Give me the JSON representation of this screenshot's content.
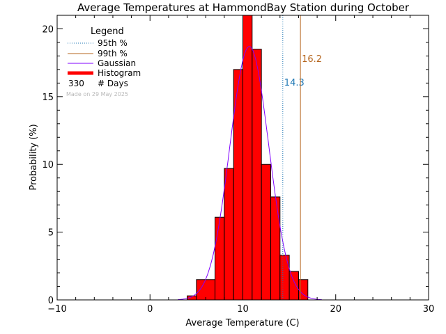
{
  "chart_data": {
    "type": "bar",
    "title": "Average Temperatures at HammondBay Station during October",
    "xlabel": "Average Temperature (C)",
    "ylabel": "Probability  (%)",
    "xlim": [
      -10,
      30
    ],
    "ylim": [
      0,
      21
    ],
    "xticks": [
      -10,
      0,
      10,
      20,
      30
    ],
    "yticks": [
      0,
      5,
      10,
      15,
      20
    ],
    "grid": false,
    "histogram": {
      "name": "Histogram",
      "color": "#ff0000",
      "bins": [
        {
          "x0": 4.0,
          "x1": 5.0,
          "value": 0.3
        },
        {
          "x0": 5.0,
          "x1": 7.0,
          "value": 1.5
        },
        {
          "x0": 7.0,
          "x1": 8.0,
          "value": 6.1
        },
        {
          "x0": 8.0,
          "x1": 9.0,
          "value": 9.7
        },
        {
          "x0": 9.0,
          "x1": 10.0,
          "value": 17.0
        },
        {
          "x0": 10.0,
          "x1": 11.0,
          "value": 21.0
        },
        {
          "x0": 11.0,
          "x1": 12.0,
          "value": 18.5
        },
        {
          "x0": 12.0,
          "x1": 13.0,
          "value": 10.0
        },
        {
          "x0": 13.0,
          "x1": 14.0,
          "value": 7.6
        },
        {
          "x0": 14.0,
          "x1": 15.0,
          "value": 3.3
        },
        {
          "x0": 15.0,
          "x1": 16.0,
          "value": 2.1
        },
        {
          "x0": 16.0,
          "x1": 17.0,
          "value": 1.5
        }
      ]
    },
    "gaussian": {
      "name": "Gaussian",
      "color": "#8000ff",
      "mean": 10.7,
      "sigma": 2.1,
      "peak": 18.7
    },
    "percentiles": [
      {
        "name": "95th %",
        "value": 14.3,
        "label": "14.3",
        "color": "#1f77b4",
        "style": "dotted"
      },
      {
        "name": "99th %",
        "value": 16.2,
        "label": "16.2",
        "color": "#b5651d",
        "style": "solid"
      }
    ],
    "legend": {
      "title": "Legend",
      "placement": "top-left",
      "entries": [
        "95th %",
        "99th %",
        "Gaussian",
        "Histogram"
      ],
      "days_count": "330",
      "days_label": "# Days"
    },
    "made_on": "Made on 29 May 2025"
  }
}
